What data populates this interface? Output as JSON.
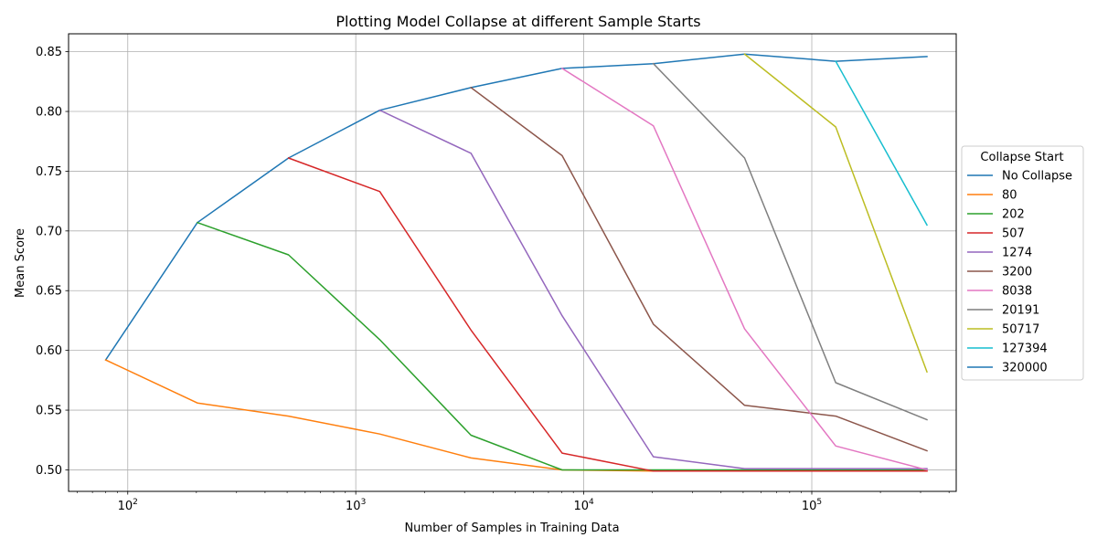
{
  "chart_data": {
    "type": "line",
    "title": "Plotting Model Collapse at different Sample Starts",
    "xlabel": "Number of Samples in Training Data",
    "ylabel": "Mean Score",
    "xscale": "log",
    "xlim": [
      55,
      430000
    ],
    "ylim": [
      0.482,
      0.865
    ],
    "xticks": [
      {
        "value": 100,
        "base": "10",
        "exp": "2"
      },
      {
        "value": 1000,
        "base": "10",
        "exp": "3"
      },
      {
        "value": 10000,
        "base": "10",
        "exp": "4"
      },
      {
        "value": 100000,
        "base": "10",
        "exp": "5"
      }
    ],
    "yticks": [
      {
        "value": 0.5,
        "label": "0.50"
      },
      {
        "value": 0.55,
        "label": "0.55"
      },
      {
        "value": 0.6,
        "label": "0.60"
      },
      {
        "value": 0.65,
        "label": "0.65"
      },
      {
        "value": 0.7,
        "label": "0.70"
      },
      {
        "value": 0.75,
        "label": "0.75"
      },
      {
        "value": 0.8,
        "label": "0.80"
      },
      {
        "value": 0.85,
        "label": "0.85"
      }
    ],
    "grid": true,
    "legend": {
      "title": "Collapse Start",
      "placement": "center-right-outside"
    },
    "series": [
      {
        "name": "No Collapse",
        "color": "#1f77b4",
        "x": [
          80,
          202,
          507,
          1274,
          3200,
          8038,
          20191,
          50717,
          127394,
          320000
        ],
        "y": [
          0.592,
          0.707,
          0.761,
          0.801,
          0.82,
          0.836,
          0.84,
          0.848,
          0.842,
          0.846
        ]
      },
      {
        "name": "80",
        "color": "#ff7f0e",
        "x": [
          80,
          202,
          507,
          1274,
          3200,
          8038,
          20191,
          50717,
          127394,
          320000
        ],
        "y": [
          0.592,
          0.556,
          0.545,
          0.53,
          0.51,
          0.5,
          0.499,
          0.499,
          0.499,
          0.499
        ]
      },
      {
        "name": "202",
        "color": "#2ca02c",
        "x": [
          202,
          507,
          1274,
          3200,
          8038,
          20191,
          50717,
          127394,
          320000
        ],
        "y": [
          0.707,
          0.68,
          0.609,
          0.529,
          0.5,
          0.5,
          0.5,
          0.5,
          0.5
        ]
      },
      {
        "name": "507",
        "color": "#d62728",
        "x": [
          507,
          1274,
          3200,
          8038,
          20191,
          50717,
          127394,
          320000
        ],
        "y": [
          0.761,
          0.733,
          0.617,
          0.514,
          0.499,
          0.499,
          0.499,
          0.499
        ]
      },
      {
        "name": "1274",
        "color": "#9467bd",
        "x": [
          1274,
          3200,
          8038,
          20191,
          50717,
          127394,
          320000
        ],
        "y": [
          0.801,
          0.765,
          0.629,
          0.511,
          0.501,
          0.501,
          0.501
        ]
      },
      {
        "name": "3200",
        "color": "#8c564b",
        "x": [
          3200,
          8038,
          20191,
          50717,
          127394,
          320000
        ],
        "y": [
          0.82,
          0.763,
          0.622,
          0.554,
          0.545,
          0.516
        ]
      },
      {
        "name": "8038",
        "color": "#e377c2",
        "x": [
          8038,
          20191,
          50717,
          127394,
          320000
        ],
        "y": [
          0.836,
          0.788,
          0.618,
          0.52,
          0.5
        ]
      },
      {
        "name": "20191",
        "color": "#7f7f7f",
        "x": [
          20191,
          50717,
          127394,
          320000
        ],
        "y": [
          0.84,
          0.761,
          0.573,
          0.542
        ]
      },
      {
        "name": "50717",
        "color": "#bcbd22",
        "x": [
          50717,
          127394,
          320000
        ],
        "y": [
          0.848,
          0.787,
          0.582
        ]
      },
      {
        "name": "127394",
        "color": "#17becf",
        "x": [
          127394,
          320000
        ],
        "y": [
          0.842,
          0.705
        ]
      },
      {
        "name": "320000",
        "color": "#1f77b4",
        "x": [
          320000
        ],
        "y": [
          0.846
        ]
      }
    ]
  }
}
